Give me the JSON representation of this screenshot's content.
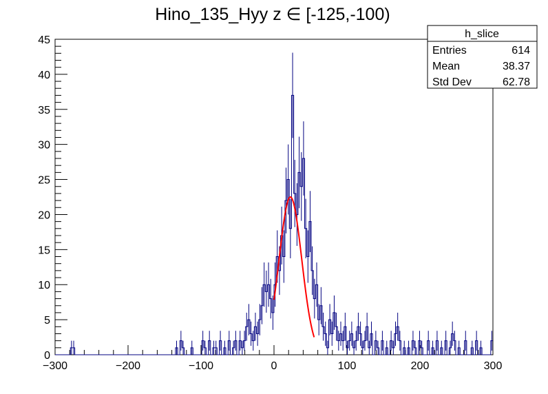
{
  "chart_data": {
    "type": "histogram",
    "title": "Hino_135_Hyy z  ∈ [-125,-100)",
    "xlabel": "",
    "ylabel": "",
    "xlim": [
      -300,
      300
    ],
    "ylim": [
      0,
      45
    ],
    "bin_width": 3,
    "x_ticks": [
      "−300",
      "−200",
      "−100",
      "0",
      "100",
      "200",
      "300"
    ],
    "y_ticks": [
      "0",
      "5",
      "10",
      "15",
      "20",
      "25",
      "30",
      "35",
      "40",
      "45"
    ],
    "grid": false,
    "line_color": "#000080",
    "fit_color": "#ff0000",
    "bins": [
      [
        -279,
        1
      ],
      [
        -276,
        1
      ],
      [
        -135,
        1
      ],
      [
        -129,
        2
      ],
      [
        -126,
        1
      ],
      [
        -114,
        1
      ],
      [
        -99,
        2
      ],
      [
        -96,
        1
      ],
      [
        -90,
        2
      ],
      [
        -84,
        1
      ],
      [
        -81,
        1
      ],
      [
        -75,
        2
      ],
      [
        -69,
        1
      ],
      [
        -63,
        2
      ],
      [
        -57,
        1
      ],
      [
        -54,
        2
      ],
      [
        -48,
        2
      ],
      [
        -45,
        1
      ],
      [
        -42,
        2
      ],
      [
        -39,
        4
      ],
      [
        -36,
        5
      ],
      [
        -33,
        3
      ],
      [
        -30,
        2
      ],
      [
        -27,
        4
      ],
      [
        -24,
        3
      ],
      [
        -21,
        5
      ],
      [
        -18,
        7
      ],
      [
        -15,
        10
      ],
      [
        -12,
        9
      ],
      [
        -9,
        10
      ],
      [
        -6,
        8
      ],
      [
        -3,
        6
      ],
      [
        0,
        10
      ],
      [
        3,
        14
      ],
      [
        6,
        12
      ],
      [
        9,
        17
      ],
      [
        12,
        14
      ],
      [
        15,
        22
      ],
      [
        18,
        25
      ],
      [
        21,
        18
      ],
      [
        24,
        37
      ],
      [
        27,
        23
      ],
      [
        30,
        20
      ],
      [
        33,
        26
      ],
      [
        36,
        24
      ],
      [
        39,
        28
      ],
      [
        42,
        18
      ],
      [
        45,
        14
      ],
      [
        48,
        19
      ],
      [
        51,
        12
      ],
      [
        54,
        8
      ],
      [
        57,
        10
      ],
      [
        60,
        5
      ],
      [
        63,
        7
      ],
      [
        66,
        4
      ],
      [
        69,
        3
      ],
      [
        72,
        1
      ],
      [
        75,
        5
      ],
      [
        78,
        3
      ],
      [
        81,
        6
      ],
      [
        84,
        4
      ],
      [
        87,
        2
      ],
      [
        90,
        3
      ],
      [
        93,
        2
      ],
      [
        96,
        4
      ],
      [
        99,
        1
      ],
      [
        102,
        2
      ],
      [
        105,
        3
      ],
      [
        108,
        1
      ],
      [
        111,
        2
      ],
      [
        114,
        4
      ],
      [
        117,
        3
      ],
      [
        120,
        1
      ],
      [
        123,
        2
      ],
      [
        126,
        4
      ],
      [
        129,
        1
      ],
      [
        132,
        3
      ],
      [
        138,
        2
      ],
      [
        141,
        1
      ],
      [
        147,
        2
      ],
      [
        153,
        1
      ],
      [
        159,
        2
      ],
      [
        162,
        1
      ],
      [
        165,
        3
      ],
      [
        168,
        4
      ],
      [
        171,
        2
      ],
      [
        177,
        1
      ],
      [
        183,
        1
      ],
      [
        189,
        2
      ],
      [
        192,
        1
      ],
      [
        198,
        2
      ],
      [
        201,
        1
      ],
      [
        210,
        2
      ],
      [
        216,
        1
      ],
      [
        222,
        2
      ],
      [
        228,
        1
      ],
      [
        234,
        2
      ],
      [
        240,
        1
      ],
      [
        243,
        3
      ],
      [
        246,
        2
      ],
      [
        252,
        1
      ],
      [
        261,
        2
      ],
      [
        270,
        1
      ],
      [
        276,
        2
      ],
      [
        282,
        1
      ],
      [
        297,
        2
      ]
    ],
    "fit": {
      "function": "gaus",
      "constant": 22.5,
      "mean": 22.5,
      "sigma": 15.5,
      "range": [
        0,
        55
      ]
    },
    "stats": {
      "title": "h_slice",
      "rows": [
        {
          "label": "Entries",
          "value": "614"
        },
        {
          "label": "Mean",
          "value": "38.37"
        },
        {
          "label": "Std Dev",
          "value": "62.78"
        }
      ]
    }
  }
}
